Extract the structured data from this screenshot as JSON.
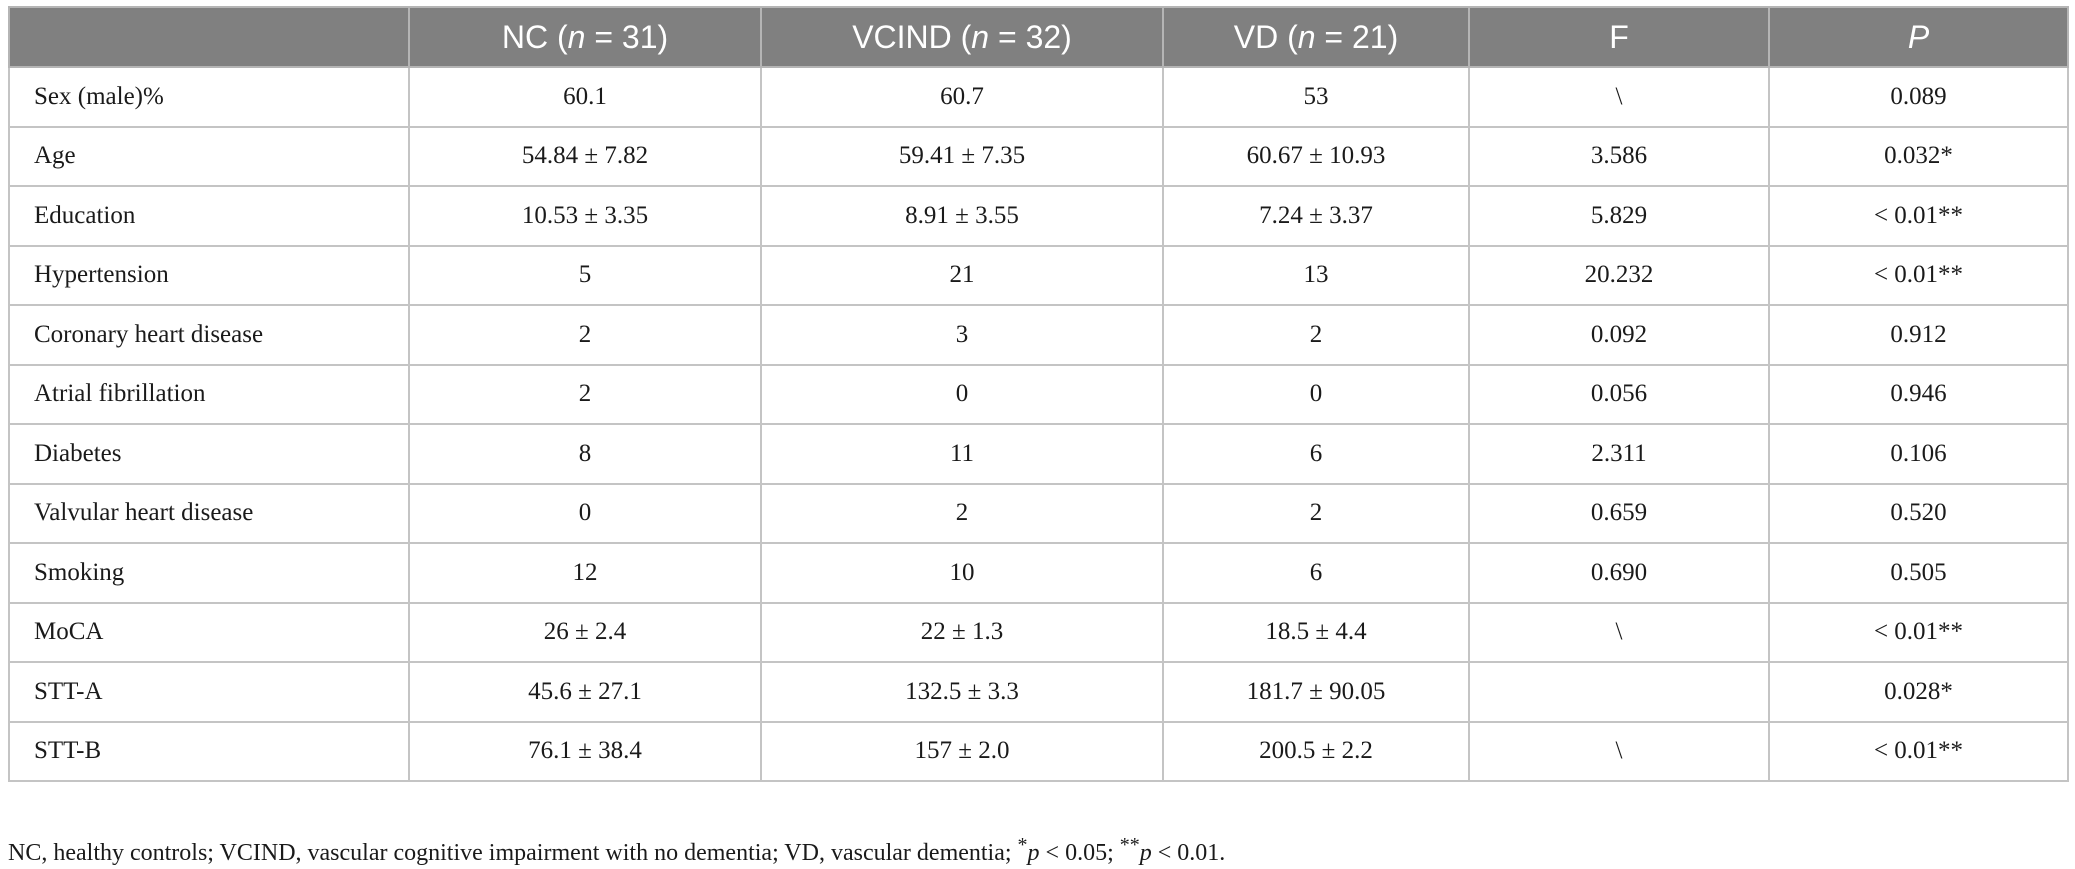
{
  "table": {
    "headers": [
      {
        "pre": "NC (",
        "it": "n",
        "post": " = 31)"
      },
      {
        "pre": "VCIND (",
        "it": "n",
        "post": " = 32)"
      },
      {
        "pre": "VD (",
        "it": "n",
        "post": " = 21)"
      },
      {
        "pre": "F",
        "it": "",
        "post": ""
      },
      {
        "pre": "",
        "it": "P",
        "post": ""
      }
    ],
    "rows": [
      {
        "label": "Sex (male)%",
        "nc": "60.1",
        "vcind": "60.7",
        "vd": "53",
        "f": "\\",
        "p": "0.089"
      },
      {
        "label": "Age",
        "nc": "54.84 ± 7.82",
        "vcind": "59.41 ± 7.35",
        "vd": "60.67 ± 10.93",
        "f": "3.586",
        "p": "0.032*"
      },
      {
        "label": "Education",
        "nc": "10.53 ± 3.35",
        "vcind": "8.91 ± 3.55",
        "vd": "7.24 ± 3.37",
        "f": "5.829",
        "p": "< 0.01**"
      },
      {
        "label": "Hypertension",
        "nc": "5",
        "vcind": "21",
        "vd": "13",
        "f": "20.232",
        "p": "< 0.01**"
      },
      {
        "label": "Coronary heart disease",
        "nc": "2",
        "vcind": "3",
        "vd": "2",
        "f": "0.092",
        "p": "0.912"
      },
      {
        "label": "Atrial fibrillation",
        "nc": "2",
        "vcind": "0",
        "vd": "0",
        "f": "0.056",
        "p": "0.946"
      },
      {
        "label": "Diabetes",
        "nc": "8",
        "vcind": "11",
        "vd": "6",
        "f": "2.311",
        "p": "0.106"
      },
      {
        "label": "Valvular heart disease",
        "nc": "0",
        "vcind": "2",
        "vd": "2",
        "f": "0.659",
        "p": "0.520"
      },
      {
        "label": "Smoking",
        "nc": "12",
        "vcind": "10",
        "vd": "6",
        "f": "0.690",
        "p": "0.505"
      },
      {
        "label": "MoCA",
        "nc": "26 ± 2.4",
        "vcind": "22 ± 1.3",
        "vd": "18.5 ± 4.4",
        "f": "\\",
        "p": "< 0.01**"
      },
      {
        "label": "STT-A",
        "nc": "45.6 ± 27.1",
        "vcind": "132.5 ± 3.3",
        "vd": "181.7 ± 90.05",
        "f": "",
        "p": "0.028*"
      },
      {
        "label": "STT-B",
        "nc": "76.1 ± 38.4",
        "vcind": "157 ± 2.0",
        "vd": "200.5 ± 2.2",
        "f": "\\",
        "p": "< 0.01**"
      }
    ]
  },
  "footnote": {
    "text": "NC, healthy controls; VCIND, vascular cognitive impairment with no dementia; VD, vascular dementia; ",
    "star1": "*",
    "p1": "p",
    "t1": " < 0.05; ",
    "star2": "**",
    "p2": "p",
    "t2": " < 0.01."
  }
}
